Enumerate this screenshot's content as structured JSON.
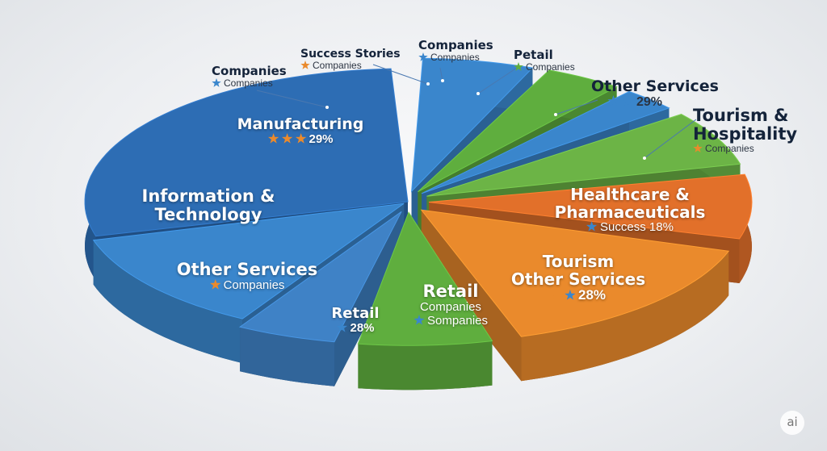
{
  "callouts": [
    {
      "title_lines": [
        "Companies"
      ],
      "subtitle": "Companies"
    },
    {
      "title_lines": [
        "Success Stories"
      ],
      "subtitle": "Companies"
    },
    {
      "title_lines": [
        "Companies"
      ],
      "subtitle": "Companies"
    },
    {
      "title_lines": [
        "Petail"
      ],
      "subtitle": "Companies"
    },
    {
      "title_lines": [
        "Other Services"
      ],
      "subtitle": "29%"
    },
    {
      "title_lines": [
        "Tourism &",
        "Hospitality"
      ],
      "subtitle": "Companies"
    }
  ],
  "slices": [
    {
      "title_lines": [
        "Manufacturing"
      ],
      "sub_lines": [
        "29%"
      ]
    },
    {
      "title_lines": [
        "Information &",
        "Technology"
      ],
      "sub_lines": []
    },
    {
      "title_lines": [
        "Other Services"
      ],
      "sub_lines": [
        "Companies"
      ]
    },
    {
      "title_lines": [
        "Retail"
      ],
      "sub_lines": [
        "28%"
      ]
    },
    {
      "title_lines": [
        "Retail"
      ],
      "sub_lines": [
        "Companies",
        "Sompanies"
      ]
    },
    {
      "title_lines": [
        "Healthcare &",
        "Pharmaceuticals"
      ],
      "sub_lines": [
        "Success 18%"
      ]
    },
    {
      "title_lines": [
        "Tourism",
        "Other Services"
      ],
      "sub_lines": [
        "28%"
      ]
    }
  ],
  "watermark": "ai"
}
